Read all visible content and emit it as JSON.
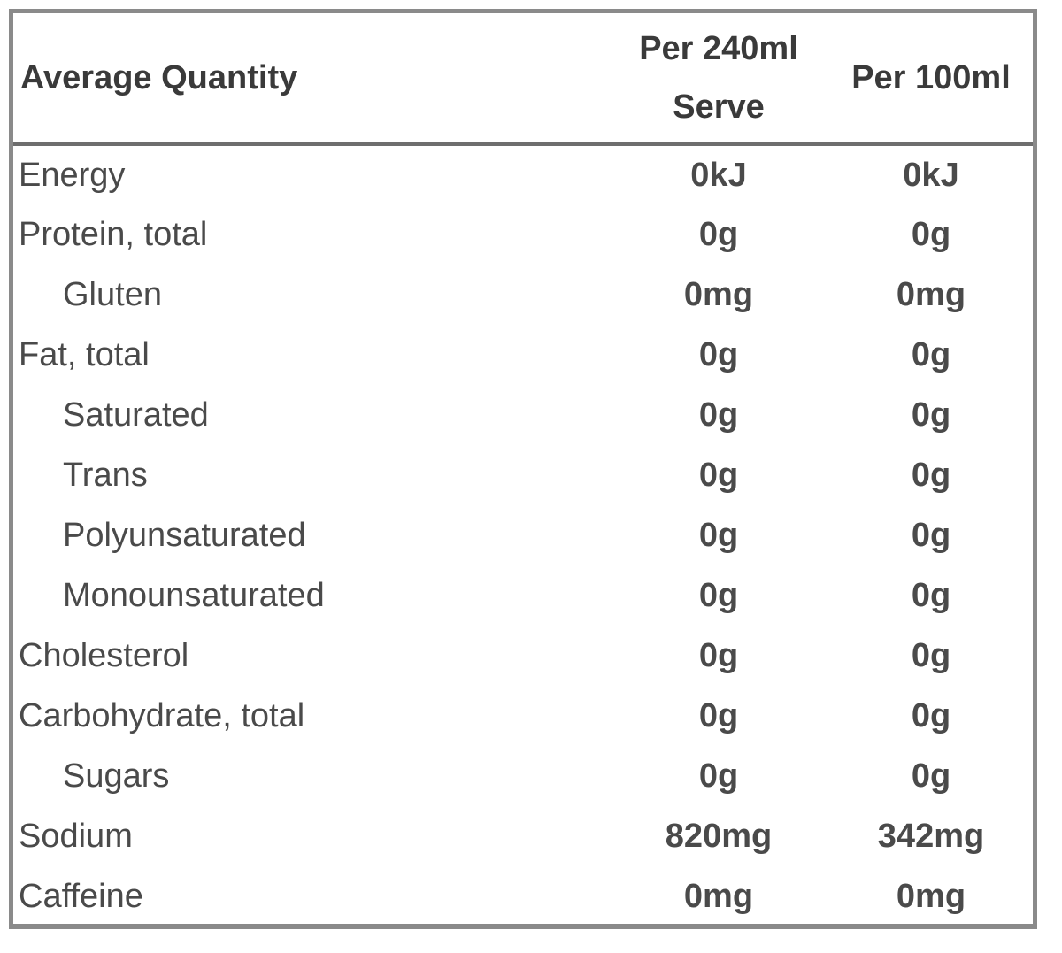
{
  "table": {
    "headers": {
      "name": "Average Quantity",
      "per_serve_line1": "Per 240ml",
      "per_serve_line2": "Serve",
      "per_100": "Per 100ml"
    },
    "rows": [
      {
        "name": "Energy",
        "indent": false,
        "per_serve": "0kJ",
        "per_100": "0kJ"
      },
      {
        "name": "Protein, total",
        "indent": false,
        "per_serve": "0g",
        "per_100": "0g"
      },
      {
        "name": "Gluten",
        "indent": true,
        "per_serve": "0mg",
        "per_100": "0mg"
      },
      {
        "name": "Fat, total",
        "indent": false,
        "per_serve": "0g",
        "per_100": "0g"
      },
      {
        "name": "Saturated",
        "indent": true,
        "per_serve": "0g",
        "per_100": "0g"
      },
      {
        "name": "Trans",
        "indent": true,
        "per_serve": "0g",
        "per_100": "0g"
      },
      {
        "name": "Polyunsaturated",
        "indent": true,
        "per_serve": "0g",
        "per_100": "0g"
      },
      {
        "name": "Monounsaturated",
        "indent": true,
        "per_serve": "0g",
        "per_100": "0g"
      },
      {
        "name": "Cholesterol",
        "indent": false,
        "per_serve": "0g",
        "per_100": "0g"
      },
      {
        "name": "Carbohydrate, total",
        "indent": false,
        "per_serve": "0g",
        "per_100": "0g"
      },
      {
        "name": "Sugars",
        "indent": true,
        "per_serve": "0g",
        "per_100": "0g"
      },
      {
        "name": "Sodium",
        "indent": false,
        "per_serve": "820mg",
        "per_100": "342mg"
      },
      {
        "name": "Caffeine",
        "indent": false,
        "per_serve": "0mg",
        "per_100": "0mg"
      }
    ]
  }
}
